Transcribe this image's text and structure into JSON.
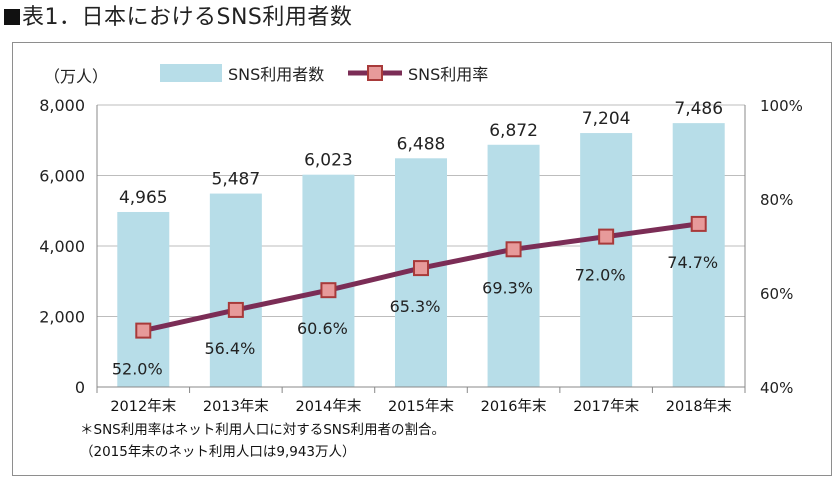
{
  "header": {
    "title": "表1．日本におけるSNS利用者数"
  },
  "notes": {
    "line1": "＊SNS利用率はネット利用人口に対するSNS利用者の割合。",
    "line2": "（2015年末のネット利用人口は9,943万人）"
  },
  "colors": {
    "bar": "#b7dde8",
    "line": "#7b2d56",
    "marker_fill": "#e79a9a",
    "marker_border": "#a83a3a"
  },
  "chart_data": {
    "type": "bar",
    "y_unit_label": "（万人）",
    "categories": [
      "2012年末",
      "2013年末",
      "2014年末",
      "2015年末",
      "2016年末",
      "2017年末",
      "2018年末"
    ],
    "series": [
      {
        "name": "SNS利用者数",
        "type": "bar",
        "axis": "left",
        "values": [
          4965,
          5487,
          6023,
          6488,
          6872,
          7204,
          7486
        ],
        "labels": [
          "4,965",
          "5,487",
          "6,023",
          "6,488",
          "6,872",
          "7,204",
          "7,486"
        ]
      },
      {
        "name": "SNS利用率",
        "type": "line",
        "axis": "right",
        "values": [
          52.0,
          56.4,
          60.6,
          65.3,
          69.3,
          72.0,
          74.7
        ],
        "labels": [
          "52.0%",
          "56.4%",
          "60.6%",
          "65.3%",
          "69.3%",
          "72.0%",
          "74.7%"
        ]
      }
    ],
    "y_left": {
      "range": [
        0,
        8000
      ],
      "ticks": [
        "0",
        "2,000",
        "4,000",
        "6,000",
        "8,000"
      ]
    },
    "y_right": {
      "range": [
        40,
        100
      ],
      "ticks": [
        "40%",
        "60%",
        "80%",
        "100%"
      ]
    },
    "grid": "horizontal",
    "legend_position": "top"
  }
}
